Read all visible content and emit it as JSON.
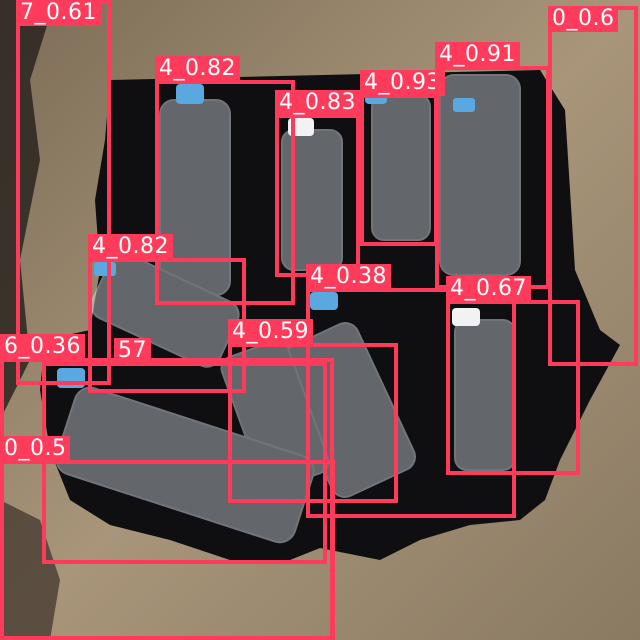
{
  "colors": {
    "box": "#ff3b5c",
    "label_text": "#ffffff",
    "floor": "#9c8a70",
    "cloth": "#0f0f11"
  },
  "detections": [
    {
      "label": "7_0.61"
    },
    {
      "label": "0_0.6"
    },
    {
      "label": "4_0.82"
    },
    {
      "label": "4_0.83"
    },
    {
      "label": "4_0.93"
    },
    {
      "label": "4_0.91"
    },
    {
      "label": "4_0.82"
    },
    {
      "label": "4_0.38"
    },
    {
      "label": "4_0.67"
    },
    {
      "label": "4_0.59"
    },
    {
      "label": "6_0.36"
    },
    {
      "label": "57"
    },
    {
      "label": "0_0.5"
    }
  ]
}
